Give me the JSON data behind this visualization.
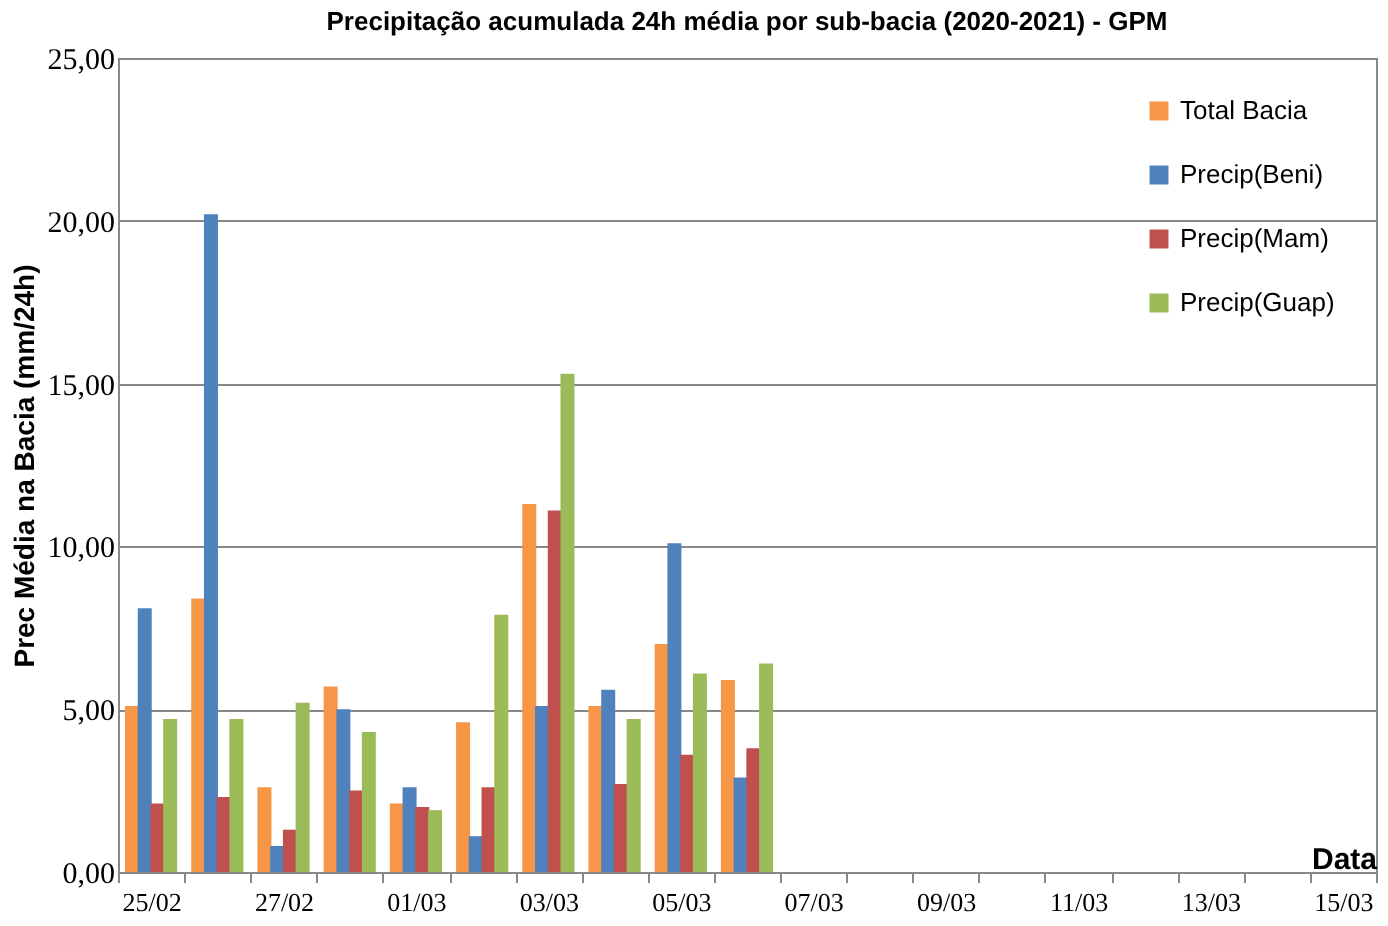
{
  "chart_data": {
    "type": "bar",
    "title": "Precipitação acumulada 24h média por sub-bacia (2020-2021) - GPM",
    "xlabel": "Data",
    "ylabel": "Prec  Média na Bacia (mm/24h)",
    "categories": [
      "25/02",
      null,
      "27/02",
      null,
      "01/03",
      null,
      "03/03",
      null,
      "05/03",
      null,
      "07/03",
      null,
      "09/03",
      null,
      "11/03",
      null,
      "13/03",
      null,
      "15/03"
    ],
    "series": [
      {
        "name": "Total Bacia",
        "color": "#f79646",
        "values": [
          5.1,
          8.4,
          2.6,
          5.7,
          2.1,
          4.6,
          11.3,
          5.1,
          7.0,
          5.9,
          null,
          null,
          null,
          null,
          null,
          null,
          null,
          null,
          null
        ]
      },
      {
        "name": "Precip(Beni)",
        "color": "#4f81bd",
        "values": [
          8.1,
          20.2,
          0.8,
          5.0,
          2.6,
          1.1,
          5.1,
          5.6,
          10.1,
          2.9,
          null,
          null,
          null,
          null,
          null,
          null,
          null,
          null,
          null
        ]
      },
      {
        "name": "Precip(Mam)",
        "color": "#c0504d",
        "values": [
          2.1,
          2.3,
          1.3,
          2.5,
          2.0,
          2.6,
          11.1,
          2.7,
          3.6,
          3.8,
          null,
          null,
          null,
          null,
          null,
          null,
          null,
          null,
          null
        ]
      },
      {
        "name": "Precip(Guap)",
        "color": "#9bbb59",
        "values": [
          4.7,
          4.7,
          5.2,
          4.3,
          1.9,
          7.9,
          15.3,
          4.7,
          6.1,
          6.4,
          null,
          null,
          null,
          null,
          null,
          null,
          null,
          null,
          null
        ]
      }
    ],
    "ylim": [
      0,
      25
    ],
    "yticks": [
      {
        "value": 0,
        "label": "0,00"
      },
      {
        "value": 5,
        "label": "5,00"
      },
      {
        "value": 10,
        "label": "10,00"
      },
      {
        "value": 15,
        "label": "15,00"
      },
      {
        "value": 20,
        "label": "20,00"
      },
      {
        "value": 25,
        "label": "25,00"
      }
    ],
    "grid": "y",
    "legend": "top right"
  }
}
